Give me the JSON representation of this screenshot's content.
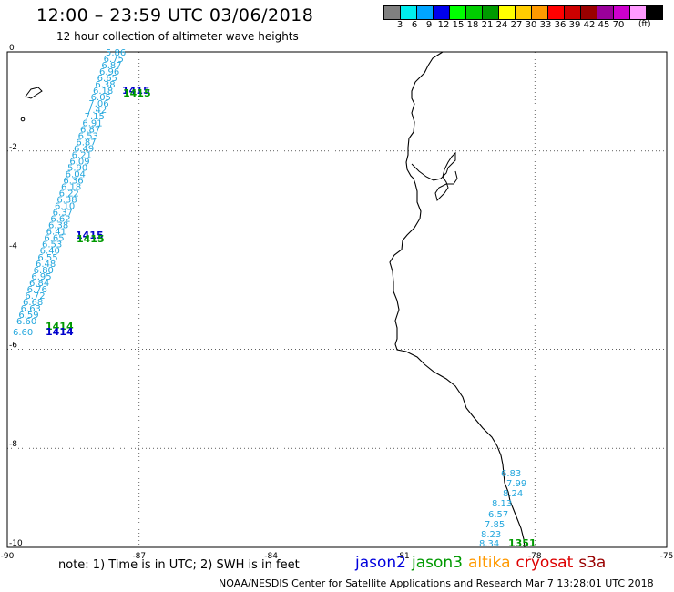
{
  "header": {
    "title": "12:00 – 23:59 UTC 03/06/2018",
    "subtitle": "12 hour collection of altimeter wave heights"
  },
  "legend": {
    "colors": [
      "#808080",
      "#00eeee",
      "#00a5ff",
      "#0000ee",
      "#00ff00",
      "#00cd00",
      "#009a00",
      "#ffff00",
      "#ffcd00",
      "#ff9a00",
      "#ff0000",
      "#cd0000",
      "#9a0000",
      "#9a009a",
      "#cd00cd",
      "#ff9aff",
      "#000000"
    ],
    "labels": [
      "3",
      "6",
      "9",
      "12",
      "15",
      "18",
      "21",
      "24",
      "27",
      "30",
      "33",
      "36",
      "39",
      "42",
      "45",
      "70"
    ],
    "unit": "(ft)"
  },
  "axes": {
    "x_labels": [
      "-90",
      "-87",
      "-84",
      "-81",
      "-78",
      "-75"
    ],
    "y_labels": [
      "0",
      "-2",
      "-4",
      "-6",
      "-8",
      "-10"
    ]
  },
  "tracks": {
    "offshore_heights": [
      "5.86",
      "6.75",
      "6.87",
      "6.96",
      "6.65",
      "6.38",
      "6.18",
      "6.05",
      "7.06",
      "7.42",
      "7.15",
      "6.91",
      "6.87",
      "6.53",
      "6.87",
      "6.49",
      "6.21",
      "6.09",
      "5.90",
      "6.04",
      "6.36",
      "6.18",
      "6.22",
      "6.38",
      "6.10",
      "6.37",
      "6.62",
      "6.38",
      "6.41",
      "6.65",
      "6.53",
      "6.40",
      "6.55",
      "6.48",
      "6.80",
      "6.95",
      "6.84",
      "6.76",
      "6.72",
      "6.68",
      "6.63",
      "6.59",
      "6.60"
    ],
    "offshore_start": "6.60",
    "coastal_heights": [
      "6.83",
      "7.99",
      "8.24",
      "8.13",
      "6.57",
      "7.85",
      "8.23",
      "8.34"
    ],
    "time_labels": [
      {
        "text": "1415",
        "color": "#0000cc"
      },
      {
        "text": "1415",
        "color": "#009900"
      },
      {
        "text": "1415",
        "color": "#0000cc"
      },
      {
        "text": "1415",
        "color": "#009900"
      },
      {
        "text": "1414",
        "color": "#009900"
      },
      {
        "text": "1414",
        "color": "#0000cc"
      },
      {
        "text": "1351",
        "color": "#009900"
      }
    ]
  },
  "note": "note:  1) Time is in UTC;  2) SWH is in feet",
  "satellites": [
    {
      "name": "jason2",
      "color": "#0000dd"
    },
    {
      "name": "jason3",
      "color": "#009900"
    },
    {
      "name": "altika",
      "color": "#ff9900"
    },
    {
      "name": "cryosat",
      "color": "#dd0000"
    },
    {
      "name": "s3a",
      "color": "#990000"
    }
  ],
  "footer": "NOAA/NESDIS Center for Satellite Applications and Research     Mar  7 13:28:01 UTC 2018"
}
